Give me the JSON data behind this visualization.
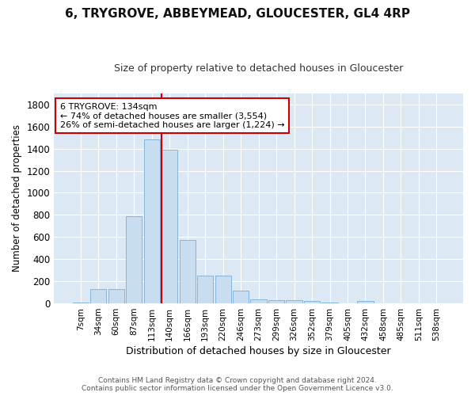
{
  "title": "6, TRYGROVE, ABBEYMEAD, GLOUCESTER, GL4 4RP",
  "subtitle": "Size of property relative to detached houses in Gloucester",
  "xlabel": "Distribution of detached houses by size in Gloucester",
  "ylabel": "Number of detached properties",
  "bar_color": "#c9ddf0",
  "bar_edge_color": "#7aadd4",
  "background_color": "#dce9f5",
  "fig_background_color": "#ffffff",
  "grid_color": "#ffffff",
  "categories": [
    "7sqm",
    "34sqm",
    "60sqm",
    "87sqm",
    "113sqm",
    "140sqm",
    "166sqm",
    "193sqm",
    "220sqm",
    "246sqm",
    "273sqm",
    "299sqm",
    "326sqm",
    "352sqm",
    "379sqm",
    "405sqm",
    "432sqm",
    "458sqm",
    "485sqm",
    "511sqm",
    "538sqm"
  ],
  "values": [
    10,
    130,
    130,
    790,
    1480,
    1390,
    570,
    250,
    250,
    115,
    35,
    30,
    30,
    20,
    10,
    0,
    20,
    0,
    0,
    0,
    0
  ],
  "ylim": [
    0,
    1900
  ],
  "yticks": [
    0,
    200,
    400,
    600,
    800,
    1000,
    1200,
    1400,
    1600,
    1800
  ],
  "property_line_x": 4.55,
  "annotation_text": "6 TRYGROVE: 134sqm\n← 74% of detached houses are smaller (3,554)\n26% of semi-detached houses are larger (1,224) →",
  "annotation_box_color": "#ffffff",
  "annotation_box_edge": "#cc0000",
  "property_line_color": "#cc0000",
  "footer_line1": "Contains HM Land Registry data © Crown copyright and database right 2024.",
  "footer_line2": "Contains public sector information licensed under the Open Government Licence v3.0."
}
